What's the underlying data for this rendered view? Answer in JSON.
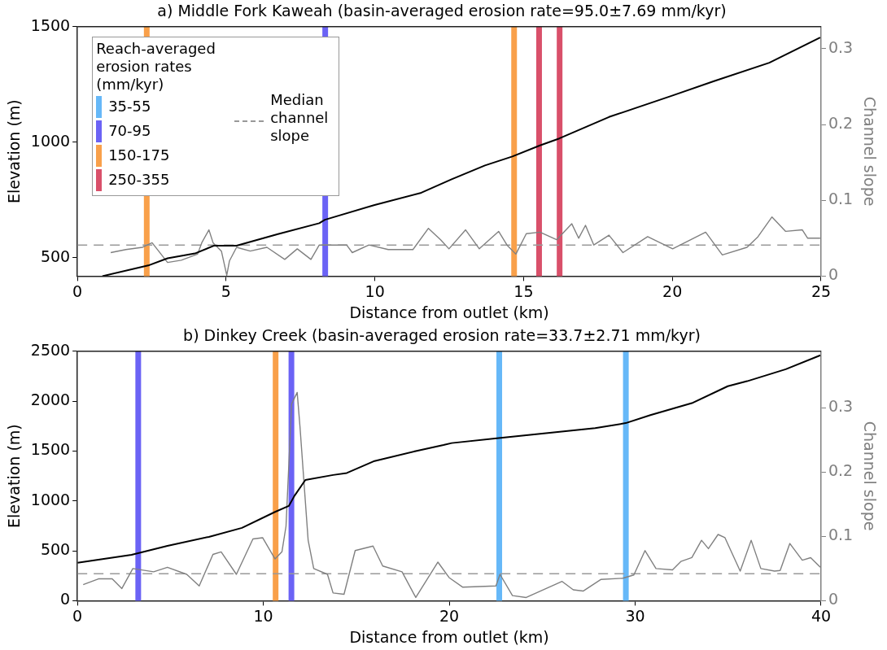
{
  "chart_data": [
    {
      "type": "line",
      "title": "a) Middle Fork Kaweah (basin-averaged erosion rate=95.0±7.69 mm/kyr)",
      "xlabel": "Distance from outlet (km)",
      "ylabel": "Elevation (m)",
      "y2label": "Channel slope",
      "legend_title": "Reach-averaged erosion rates (mm/kyr)",
      "legend": "top left",
      "marker": "none",
      "grid": false,
      "xlim": [
        0,
        25
      ],
      "xticks": [
        0,
        5,
        10,
        15,
        20,
        25
      ],
      "ylim": [
        420,
        1500
      ],
      "yticks": [
        500,
        1000,
        1500
      ],
      "y2lim": [
        0,
        0.329
      ],
      "y2ticks": [
        0,
        0.1,
        0.2,
        0.3
      ],
      "series": [
        {
          "color": "#000000",
          "x": [
            0.84,
            2.38,
            3.03,
            3.95,
            4.6,
            5.35,
            6.74,
            8.13,
            8.32,
            9.99,
            11.56,
            12.58,
            13.7,
            14.62,
            15.55,
            16.2,
            17.87,
            20.01,
            21.4,
            23.26,
            24.97
          ],
          "values": [
            420,
            466,
            497,
            518,
            552,
            552,
            602,
            649,
            664,
            728,
            781,
            839,
            899,
            938,
            986,
            1016,
            1109,
            1202,
            1264,
            1344,
            1453
          ]
        },
        {
          "color": "#808080",
          "axis": "y2",
          "x": [
            1.12,
            1.63,
            2.19,
            2.51,
            3.03,
            3.49,
            4.04,
            4.18,
            4.42,
            4.56,
            4.84,
            5.02,
            5.11,
            5.35,
            5.81,
            6.37,
            6.97,
            7.39,
            7.85,
            8.13,
            9.05,
            9.24,
            9.8,
            10.45,
            11.28,
            11.8,
            12.21,
            12.49,
            13.05,
            13.51,
            14.16,
            14.44,
            14.74,
            15.09,
            15.55,
            16.11,
            16.62,
            16.85,
            17.08,
            17.36,
            17.87,
            18.34,
            19.17,
            20.01,
            21.12,
            21.68,
            22.51,
            22.88,
            23.35,
            23.81,
            24.37,
            24.55,
            24.97
          ],
          "values": [
            0.031,
            0.035,
            0.038,
            0.044,
            0.018,
            0.021,
            0.029,
            0.044,
            0.061,
            0.044,
            0.033,
            0.001,
            0.02,
            0.038,
            0.033,
            0.038,
            0.022,
            0.036,
            0.022,
            0.041,
            0.041,
            0.031,
            0.041,
            0.035,
            0.035,
            0.063,
            0.048,
            0.036,
            0.061,
            0.036,
            0.059,
            0.041,
            0.029,
            0.056,
            0.058,
            0.048,
            0.069,
            0.05,
            0.067,
            0.041,
            0.054,
            0.031,
            0.052,
            0.036,
            0.058,
            0.028,
            0.038,
            0.052,
            0.078,
            0.059,
            0.061,
            0.05,
            0.05
          ]
        },
        {
          "name": "35-55",
          "color": "#66b8f8"
        },
        {
          "name": "70-95",
          "color": "#6b63f5"
        },
        {
          "name": "150-175",
          "color": "#f9a04a"
        },
        {
          "name": "250-355",
          "color": "#d9506a"
        }
      ],
      "ref_lines": [
        {
          "axis": "x",
          "value": 2.33,
          "color": "#f9a04a"
        },
        {
          "axis": "x",
          "value": 8.33,
          "color": "#6b63f5"
        },
        {
          "axis": "x",
          "value": 14.68,
          "color": "#f9a04a"
        },
        {
          "axis": "x",
          "value": 15.52,
          "color": "#d9506a"
        },
        {
          "axis": "x",
          "value": 16.21,
          "color": "#d9506a"
        },
        {
          "axis": "y2",
          "value": 0.041,
          "color": "#999999",
          "line_style": "dashed",
          "label": "Median channel slope"
        }
      ]
    },
    {
      "type": "line",
      "title": "b) Dinkey Creek (basin-averaged erosion rate=33.7±2.71 mm/kyr)",
      "xlabel": "Distance from outlet (km)",
      "ylabel": "Elevation (m)",
      "y2label": "Channel slope",
      "marker": "none",
      "grid": false,
      "xlim": [
        0,
        40
      ],
      "xticks": [
        0,
        10,
        20,
        30,
        40
      ],
      "ylim": [
        0,
        2500
      ],
      "yticks": [
        0,
        500,
        1000,
        1500,
        2000,
        2500
      ],
      "y2lim": [
        0,
        0.388
      ],
      "y2ticks": [
        0,
        0.1,
        0.2,
        0.3
      ],
      "series": [
        {
          "color": "#000000",
          "x": [
            0.01,
            2.91,
            4.84,
            7.07,
            8.85,
            10.63,
            11.37,
            11.67,
            12.26,
            13.75,
            14.49,
            15.98,
            18.2,
            19.69,
            20.13,
            22.66,
            27.85,
            29.49,
            30.82,
            33.05,
            34.98,
            36.02,
            38.1,
            39.96
          ],
          "values": [
            380,
            460,
            550,
            640,
            730,
            890,
            950,
            1050,
            1210,
            1260,
            1280,
            1400,
            1500,
            1560,
            1580,
            1630,
            1730,
            1780,
            1860,
            1980,
            2150,
            2200,
            2320,
            2460
          ]
        },
        {
          "color": "#808080",
          "axis": "y2",
          "x": [
            0.31,
            1.13,
            1.87,
            2.39,
            2.98,
            4.1,
            4.84,
            5.88,
            6.55,
            7.29,
            7.73,
            8.55,
            9.44,
            9.96,
            10.63,
            11.0,
            11.22,
            11.52,
            11.82,
            11.97,
            12.41,
            12.71,
            13.45,
            13.75,
            14.34,
            14.94,
            15.9,
            16.42,
            17.46,
            18.2,
            19.39,
            19.99,
            20.73,
            22.51,
            22.73,
            23.4,
            24.14,
            26.07,
            26.67,
            27.2,
            28.15,
            29.34,
            29.93,
            30.53,
            31.12,
            32.01,
            32.46,
            33.05,
            33.57,
            33.94,
            34.46,
            34.83,
            35.65,
            36.24,
            36.76,
            37.5,
            37.8,
            38.32,
            38.99,
            39.44,
            39.96
          ],
          "values": [
            0.025,
            0.034,
            0.034,
            0.019,
            0.05,
            0.045,
            0.052,
            0.041,
            0.023,
            0.072,
            0.076,
            0.041,
            0.096,
            0.098,
            0.065,
            0.076,
            0.116,
            0.306,
            0.324,
            0.271,
            0.094,
            0.05,
            0.041,
            0.012,
            0.01,
            0.078,
            0.085,
            0.054,
            0.045,
            0.005,
            0.06,
            0.036,
            0.021,
            0.023,
            0.041,
            0.008,
            0.005,
            0.03,
            0.017,
            0.015,
            0.033,
            0.035,
            0.04,
            0.078,
            0.05,
            0.048,
            0.061,
            0.067,
            0.094,
            0.081,
            0.103,
            0.098,
            0.046,
            0.094,
            0.05,
            0.046,
            0.047,
            0.089,
            0.063,
            0.067,
            0.052
          ]
        }
      ],
      "ref_lines": [
        {
          "axis": "x",
          "value": 3.27,
          "color": "#6b63f5"
        },
        {
          "axis": "x",
          "value": 10.66,
          "color": "#f9a04a"
        },
        {
          "axis": "x",
          "value": 11.51,
          "color": "#6b63f5"
        },
        {
          "axis": "x",
          "value": 22.69,
          "color": "#66b8f8"
        },
        {
          "axis": "x",
          "value": 29.5,
          "color": "#66b8f8"
        },
        {
          "axis": "y2",
          "value": 0.042,
          "color": "#999999",
          "line_style": "dashed"
        }
      ]
    }
  ]
}
